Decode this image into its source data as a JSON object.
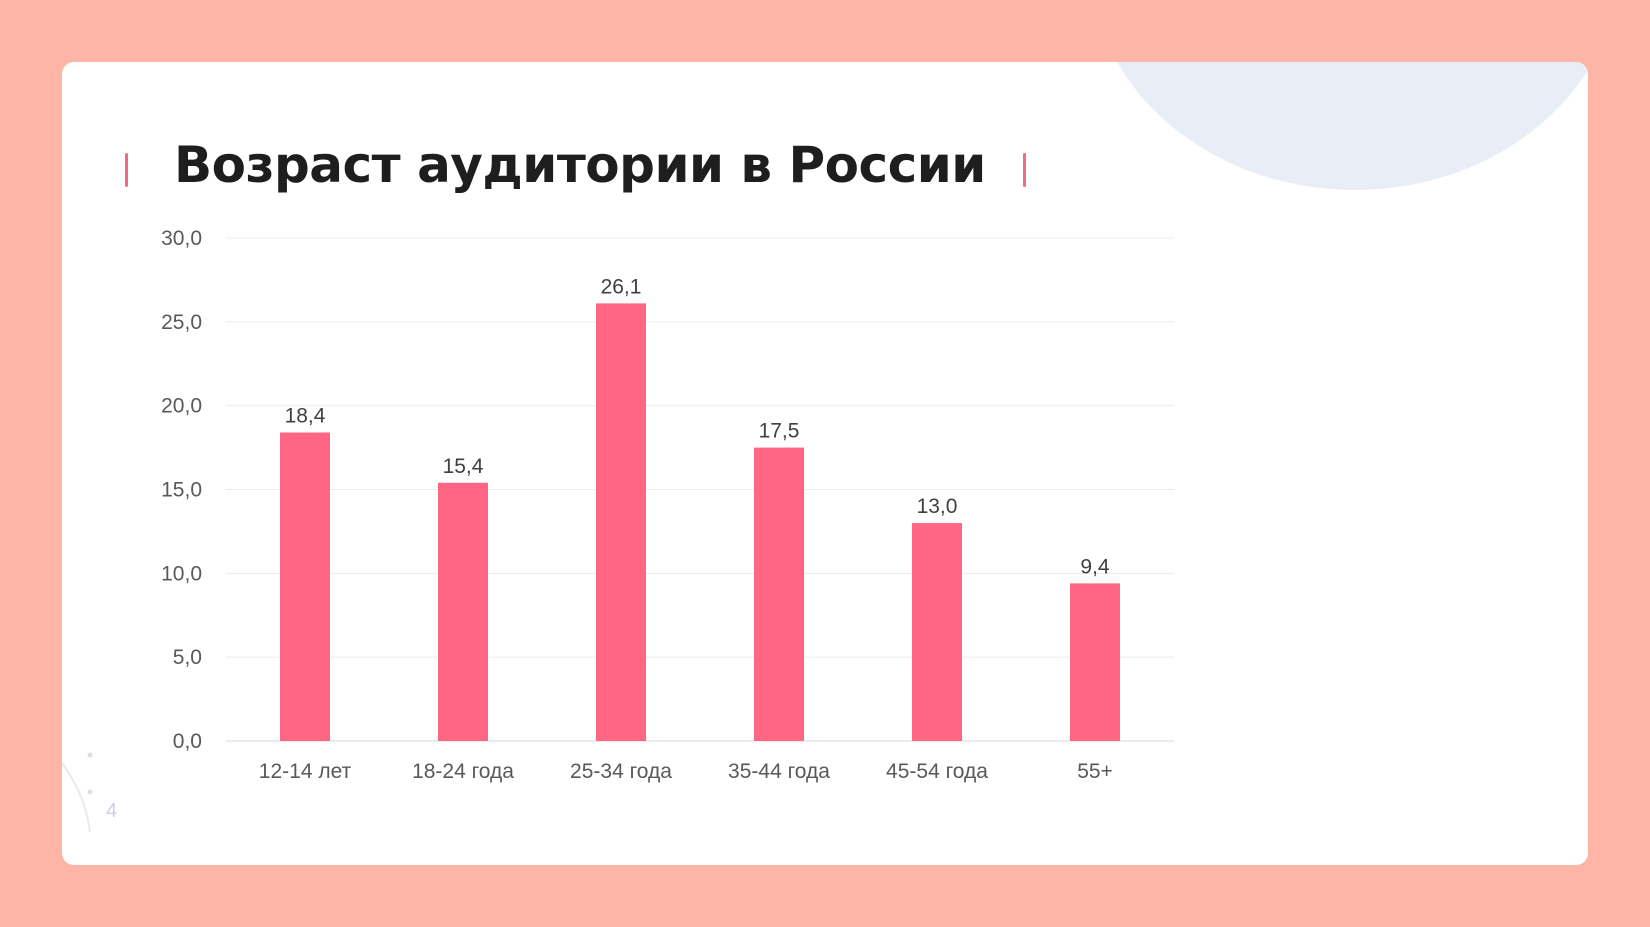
{
  "slide": {
    "title": "Возраст аудитории в России",
    "page_number": "4"
  },
  "colors": {
    "background": "#FFB5A6",
    "card": "#FFFFFF",
    "bar": "#FF6683",
    "accent": "#F06A86",
    "decor_blob": "#E9EEF6"
  },
  "chart_data": {
    "type": "bar",
    "categories": [
      "12-14 лет",
      "18-24 года",
      "25-34 года",
      "35-44 года",
      "45-54 года",
      "55+"
    ],
    "values": [
      18.4,
      15.4,
      26.1,
      17.5,
      13.0,
      9.4
    ],
    "value_labels": [
      "18,4",
      "15,4",
      "26,1",
      "17,5",
      "13,0",
      "9,4"
    ],
    "ylim": [
      0,
      30
    ],
    "yticks": [
      0,
      5,
      10,
      15,
      20,
      25,
      30
    ],
    "ytick_labels": [
      "0,0",
      "5,0",
      "10,0",
      "15,0",
      "20,0",
      "25,0",
      "30,0"
    ],
    "grid": true,
    "legend": false
  }
}
